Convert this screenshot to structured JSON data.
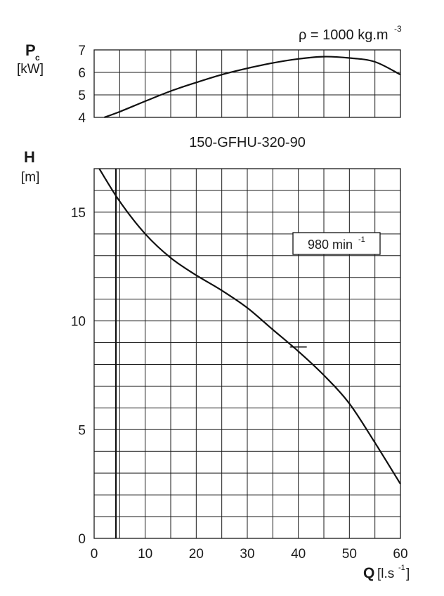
{
  "chart_data": [
    {
      "type": "line",
      "name": "power",
      "ylabel_main": "P",
      "ylabel_sub": "c",
      "ylabel_unit": "[kW]",
      "annotation": "ρ = 1000 kg.m",
      "annotation_sup": "-3",
      "xlim": [
        0,
        60
      ],
      "ylim": [
        4,
        7
      ],
      "y_ticks": [
        "4",
        "5",
        "6",
        "7"
      ],
      "grid": true,
      "series": [
        {
          "x": [
            2,
            5,
            10,
            15,
            20,
            25,
            30,
            35,
            40,
            45,
            50,
            55,
            60
          ],
          "y": [
            4.0,
            4.25,
            4.72,
            5.17,
            5.55,
            5.9,
            6.18,
            6.42,
            6.6,
            6.7,
            6.64,
            6.47,
            5.9
          ]
        }
      ]
    },
    {
      "type": "line",
      "name": "head",
      "title": "150-GFHU-320-90",
      "ylabel_main": "H",
      "ylabel_unit": "[m]",
      "xlabel_main": "Q",
      "xlabel_unit": "[l.s",
      "xlabel_sup": "-1",
      "xlabel_close": "]",
      "speed_label": "980 min",
      "speed_sup": "-1",
      "xlim": [
        0,
        60
      ],
      "ylim": [
        0,
        17
      ],
      "x_ticks": [
        "0",
        "10",
        "20",
        "30",
        "40",
        "50",
        "60"
      ],
      "y_ticks": [
        "0",
        "5",
        "10",
        "15"
      ],
      "grid": true,
      "duty_point": {
        "x": 40,
        "y": 8.8
      },
      "series": [
        {
          "x": [
            1,
            5,
            10,
            15,
            20,
            25,
            30,
            35,
            40,
            45,
            50,
            55,
            60
          ],
          "y": [
            17.0,
            15.5,
            14.0,
            12.9,
            12.1,
            11.4,
            10.6,
            9.6,
            8.6,
            7.5,
            6.2,
            4.4,
            2.5
          ]
        }
      ]
    }
  ]
}
